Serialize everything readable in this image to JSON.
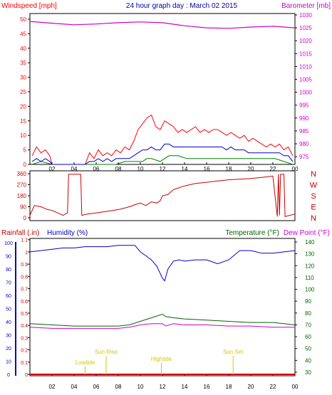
{
  "colors": {
    "frame": "#000000",
    "wind": "#ff0000",
    "wind_avg": "#0000cc",
    "wind_min": "#008000",
    "baro": "#cc00cc",
    "dir": "#cc0000",
    "rain": "#cc0000",
    "humidity": "#0000cc",
    "temp": "#006400",
    "dewpoint": "#cc00cc",
    "sun": "#cccc00",
    "grid": "#d8d8d8"
  },
  "chart_data": [
    {
      "type": "line",
      "panel": "wind-baro",
      "title": "24 hour graph day : March 02 2015",
      "ylabel_left": "Windspeed [mph]",
      "ylabel_right": "Barometer [mb]",
      "ylim_left": [
        0,
        50
      ],
      "ylim_right": [
        970,
        1030
      ],
      "yticks_left": [
        "0",
        "5",
        "10",
        "15",
        "20",
        "25",
        "30",
        "35",
        "40",
        "45",
        "50"
      ],
      "yticks_right": [
        "975",
        "980",
        "985",
        "990",
        "995",
        "1000",
        "1005",
        "1010",
        "1015",
        "1020",
        "1025",
        "1030"
      ],
      "xticks": [
        "02",
        "04",
        "06",
        "08",
        "10",
        "12",
        "14",
        "16",
        "18",
        "20",
        "22",
        "00"
      ],
      "xlim": [
        0,
        24
      ],
      "series": [
        {
          "values_key": "gust",
          "x": [
            0.2,
            0.6,
            1.0,
            1.4,
            1.8,
            2.0,
            4.5,
            5.0,
            5.4,
            5.8,
            6.2,
            6.6,
            7.0,
            7.4,
            7.8,
            8.2,
            8.6,
            9.0,
            9.4,
            9.8,
            10.2,
            10.6,
            11.0,
            11.4,
            11.8,
            12.2,
            12.6,
            13.0,
            13.4,
            13.8,
            14.2,
            14.6,
            15.0,
            15.4,
            15.8,
            16.2,
            16.6,
            17.0,
            17.4,
            17.8,
            18.2,
            18.6,
            19.0,
            19.4,
            19.8,
            20.2,
            20.6,
            21.0,
            21.4,
            21.8,
            22.2,
            22.6,
            23.0,
            23.4,
            23.8
          ],
          "y": [
            3,
            6,
            4,
            5,
            3,
            0,
            0,
            0,
            4,
            2,
            5,
            3,
            4,
            3,
            5,
            4,
            6,
            5,
            8,
            12,
            14,
            16,
            17,
            13,
            12,
            15,
            14,
            13,
            11,
            12,
            11,
            12,
            13,
            11,
            12,
            11,
            12,
            12,
            11,
            10,
            11,
            10,
            9,
            10,
            8,
            9,
            8,
            7,
            6,
            7,
            6,
            7,
            5,
            6,
            3
          ]
        },
        {
          "values_key": "average",
          "x": [
            0.2,
            0.6,
            1.0,
            1.4,
            1.8,
            2.0,
            4.5,
            5.0,
            5.4,
            5.8,
            6.2,
            6.6,
            7.0,
            7.4,
            7.8,
            8.2,
            8.6,
            9.0,
            9.4,
            9.8,
            10.2,
            10.6,
            11.0,
            11.4,
            11.8,
            12.2,
            12.6,
            13.0,
            13.4,
            13.8,
            14.2,
            14.6,
            15.0,
            15.4,
            15.8,
            16.2,
            16.6,
            17.0,
            17.4,
            17.8,
            18.2,
            18.6,
            19.0,
            19.4,
            19.8,
            20.2,
            20.6,
            21.0,
            21.4,
            21.8,
            22.2,
            22.6,
            23.0,
            23.4,
            23.8
          ],
          "y": [
            1,
            2,
            1,
            2,
            1,
            0,
            0,
            0,
            1,
            1,
            2,
            1,
            2,
            1,
            2,
            2,
            2,
            2,
            3,
            4,
            5,
            5,
            6,
            5,
            5,
            7,
            7,
            6,
            6,
            6,
            6,
            6,
            6,
            6,
            6,
            6,
            6,
            6,
            6,
            5,
            6,
            5,
            5,
            5,
            4,
            4,
            4,
            4,
            4,
            4,
            4,
            4,
            3,
            3,
            1
          ]
        },
        {
          "values_key": "minimum",
          "x": [
            0.2,
            1.0,
            2.0,
            4.5,
            6.2,
            7.0,
            7.8,
            8.6,
            9.4,
            10.2,
            10.6,
            11.0,
            11.8,
            12.6,
            13.4,
            14.2,
            15.0,
            15.8,
            16.6,
            17.4,
            18.2,
            19.0,
            19.8,
            20.6,
            21.4,
            22.2,
            23.0,
            23.8
          ],
          "y": [
            0,
            1,
            0,
            0,
            0,
            0,
            0,
            1,
            1,
            1,
            2,
            2,
            1,
            3,
            3,
            2,
            2,
            2,
            2,
            2,
            2,
            2,
            2,
            2,
            2,
            2,
            1,
            0
          ]
        },
        {
          "values_key": "barometer",
          "x": [
            0,
            2,
            4,
            6,
            8,
            10,
            12,
            14,
            16,
            18,
            20,
            22,
            24
          ],
          "y": [
            1027.5,
            1026.8,
            1026.2,
            1026.5,
            1027.0,
            1027.3,
            1027.0,
            1025.8,
            1025.0,
            1024.8,
            1025.3,
            1025.6,
            1025.0
          ]
        }
      ]
    },
    {
      "type": "line",
      "panel": "wind-direction",
      "ylim": [
        0,
        360
      ],
      "yticks_left": [
        "0",
        "90",
        "180",
        "270",
        "360"
      ],
      "yticks_right": [
        "N",
        "E",
        "S",
        "W",
        "N"
      ],
      "x": [
        0.0,
        0.4,
        1.0,
        1.5,
        2.0,
        2.5,
        3.0,
        3.4,
        3.5,
        4.0,
        4.5,
        4.6,
        4.7,
        5.2,
        6.0,
        6.8,
        7.5,
        8.2,
        9.0,
        9.6,
        10.0,
        10.5,
        11.0,
        11.5,
        11.8,
        12.0,
        12.5,
        13.0,
        14.0,
        15.0,
        16.0,
        17.0,
        18.0,
        19.0,
        20.0,
        21.0,
        22.0,
        22.4,
        22.5,
        22.6,
        22.7,
        23.0,
        23.1,
        23.5,
        24.0
      ],
      "y": [
        20,
        100,
        90,
        70,
        60,
        40,
        20,
        40,
        355,
        355,
        355,
        355,
        20,
        30,
        40,
        50,
        60,
        70,
        90,
        110,
        120,
        100,
        130,
        120,
        140,
        180,
        190,
        230,
        260,
        280,
        290,
        300,
        310,
        315,
        320,
        330,
        340,
        10,
        355,
        20,
        355,
        355,
        10,
        20,
        30
      ]
    },
    {
      "type": "line",
      "panel": "rain-humidity-temp",
      "ylabel_rain": "Rainfall (.in)",
      "ylabel_humidity": "Humidity (%)",
      "ylabel_temp": "Temperature (°F)",
      "ylabel_dew": "Dew Point (°F)",
      "yticks_humidity": [
        "0",
        "10",
        "20",
        "30",
        "40",
        "50",
        "60",
        "70",
        "80",
        "90",
        "100"
      ],
      "yticks_rain": [
        "0",
        "0.1",
        "0.2",
        "0.3",
        "0.4",
        "0.5",
        "0.6",
        "0.7",
        "0.8",
        "0.9",
        "1",
        "1.1"
      ],
      "yticks_temp": [
        "30",
        "40",
        "50",
        "60",
        "70",
        "80",
        "90",
        "100",
        "110",
        "120",
        "130",
        "140"
      ],
      "xticks": [
        "02",
        "04",
        "06",
        "08",
        "10",
        "12",
        "14",
        "16",
        "18",
        "20",
        "22",
        "00"
      ],
      "series": [
        {
          "values_key": "humidity",
          "x": [
            0,
            1,
            2,
            3,
            4,
            5,
            6,
            7,
            8,
            9,
            9.5,
            10,
            10.5,
            11,
            11.5,
            12,
            12.2,
            12.5,
            13,
            13.5,
            14,
            15,
            16,
            17,
            18,
            19,
            20,
            21,
            22,
            23,
            24
          ],
          "y": [
            93,
            94,
            95,
            96,
            96,
            97,
            97,
            97,
            98,
            98,
            98,
            93,
            90,
            87,
            82,
            73,
            71,
            80,
            86,
            87,
            86,
            87,
            87,
            84,
            87,
            94,
            94,
            92,
            92,
            93,
            94
          ]
        },
        {
          "values_key": "temperature",
          "x": [
            0,
            2,
            4,
            6,
            8,
            9,
            10,
            11,
            12,
            12.3,
            13,
            14,
            16,
            18,
            20,
            22,
            24
          ],
          "y": [
            71,
            70,
            69,
            69,
            69,
            70,
            73,
            76,
            79,
            77,
            76,
            75,
            74,
            73,
            72,
            72,
            70
          ]
        },
        {
          "values_key": "dewpoint",
          "x": [
            0,
            2,
            4,
            6,
            8,
            9,
            10,
            11,
            12,
            12.3,
            13,
            14,
            16,
            18,
            20,
            22,
            24
          ],
          "y": [
            68,
            67,
            67,
            67,
            67,
            68,
            70,
            71,
            71,
            69,
            71,
            70,
            70,
            69,
            69,
            68,
            68
          ]
        },
        {
          "values_key": "rainfall",
          "x": [
            0,
            24
          ],
          "y": [
            0,
            0
          ]
        }
      ],
      "annotations": [
        {
          "label": "Lowtide",
          "x": 5.0
        },
        {
          "label": "Sun Rise",
          "x": 6.9
        },
        {
          "label": "Hightide",
          "x": 11.9
        },
        {
          "label": "Sun Set",
          "x": 18.4
        }
      ]
    }
  ]
}
